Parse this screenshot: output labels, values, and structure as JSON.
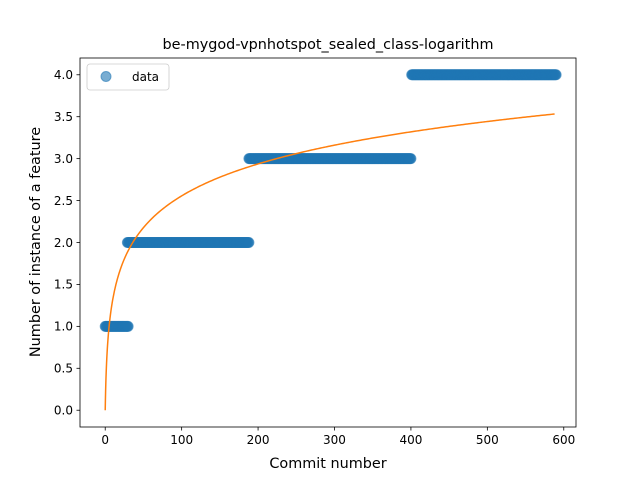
{
  "chart_data": {
    "type": "scatter",
    "title": "be-mygod-vpnhotspot_sealed_class-logarithm",
    "xlabel": "Commit number",
    "ylabel": "Number of instance of a feature",
    "xlim": [
      -33,
      616
    ],
    "ylim": [
      -0.2,
      4.2
    ],
    "x_ticks": [
      0,
      100,
      200,
      300,
      400,
      500,
      600
    ],
    "y_ticks": [
      0.0,
      0.5,
      1.0,
      1.5,
      2.0,
      2.5,
      3.0,
      3.5,
      4.0
    ],
    "x_tick_labels": [
      "0",
      "100",
      "200",
      "300",
      "400",
      "500",
      "600"
    ],
    "y_tick_labels": [
      "0.0",
      "0.5",
      "1.0",
      "1.5",
      "2.0",
      "2.5",
      "3.0",
      "3.5",
      "4.0"
    ],
    "grid": false,
    "legend": {
      "position": "upper-left",
      "entries": [
        "data"
      ]
    },
    "series": [
      {
        "name": "data",
        "kind": "scatter",
        "color": "#1f77b4",
        "segments": [
          {
            "x_start": 0,
            "x_end": 30,
            "y": 1.0
          },
          {
            "x_start": 29,
            "x_end": 188,
            "y": 2.0
          },
          {
            "x_start": 188,
            "x_end": 400,
            "y": 3.0
          },
          {
            "x_start": 401,
            "x_end": 590,
            "y": 4.0
          }
        ]
      },
      {
        "kind": "line",
        "color": "#ff7f0e",
        "function": "y = 0.5538 * ln(x + 1)",
        "a": 0.5538,
        "x_start": 0,
        "x_end": 588
      }
    ]
  }
}
